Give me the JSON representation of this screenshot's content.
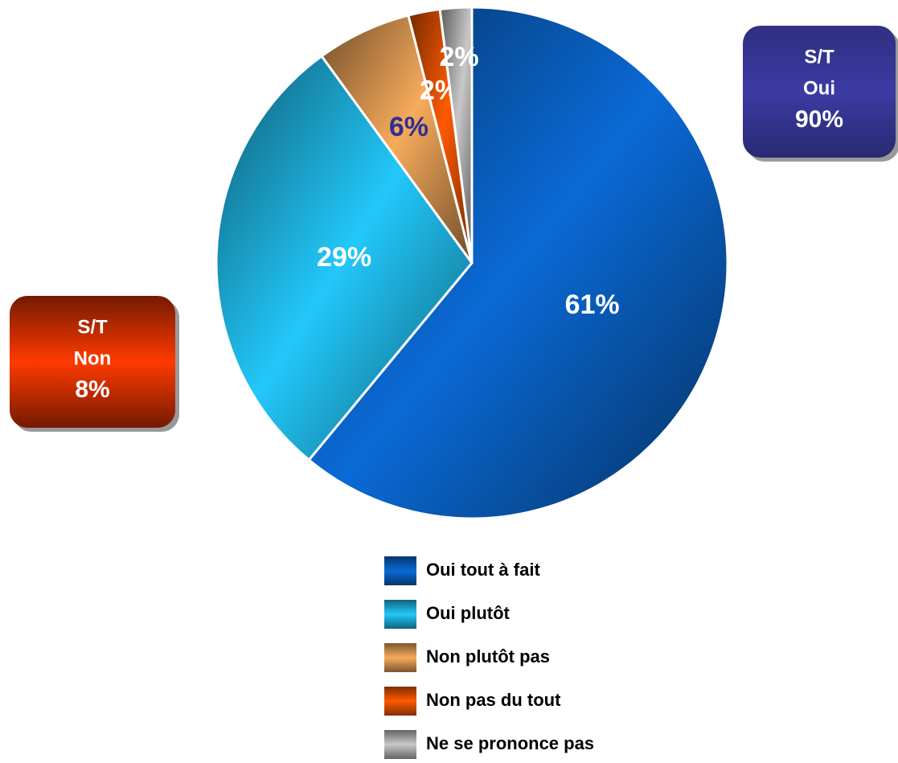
{
  "chart_data": {
    "type": "pie",
    "categories": [
      "Oui tout à fait",
      "Oui plutôt",
      "Non plutôt pas",
      "Non pas du tout",
      "Ne se prononce pas"
    ],
    "values": [
      61,
      29,
      6,
      2,
      2
    ],
    "value_labels": [
      "61%",
      "29%",
      "6%",
      "2%",
      "2%"
    ],
    "colors": [
      "#0a6ad6",
      "#22c8fa",
      "#f7ab5c",
      "#ff5a00",
      "#c8c8c8"
    ],
    "label_colors": [
      "#ffffff",
      "#ffffff",
      "#2e3192",
      "#ffffff",
      "#ffffff"
    ],
    "annotations": [
      {
        "lines": [
          "S/T",
          "Oui",
          "90%"
        ],
        "color": "#3b3ba3"
      },
      {
        "lines": [
          "S/T",
          "Non",
          "8%"
        ],
        "color": "#ff3a00"
      }
    ]
  }
}
